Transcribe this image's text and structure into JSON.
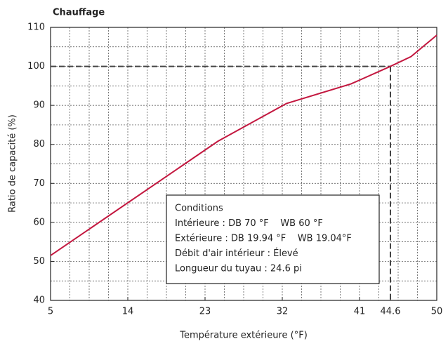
{
  "chart_data": {
    "type": "line",
    "title": "Chauffage",
    "xlabel": "Température extérieure (°F)",
    "ylabel": "Ratio de capacité (%)",
    "x": [
      5,
      24.5,
      32.5,
      40,
      44.6,
      47,
      50
    ],
    "series": [
      {
        "name": "Chauffage",
        "color": "#c3173f",
        "values": [
          51.5,
          80.8,
          90.5,
          95.5,
          100,
          102.5,
          108
        ]
      }
    ],
    "xlim": [
      5,
      50
    ],
    "xticks": [
      5,
      14,
      23,
      32,
      41,
      44.6,
      50
    ],
    "ylim": [
      40,
      110
    ],
    "yticks": [
      40,
      50,
      60,
      70,
      80,
      90,
      100,
      110
    ],
    "grid": true,
    "reference": {
      "x": 44.6,
      "y": 100
    },
    "conditions": [
      "Conditions",
      "Intérieure : DB 70 °F    WB 60 °F",
      "Extérieure : DB 19.94 °F    WB 19.04°F",
      "Débit d'air intérieur : Élevé",
      "Longueur du tuyau : 24.6 pi"
    ]
  }
}
